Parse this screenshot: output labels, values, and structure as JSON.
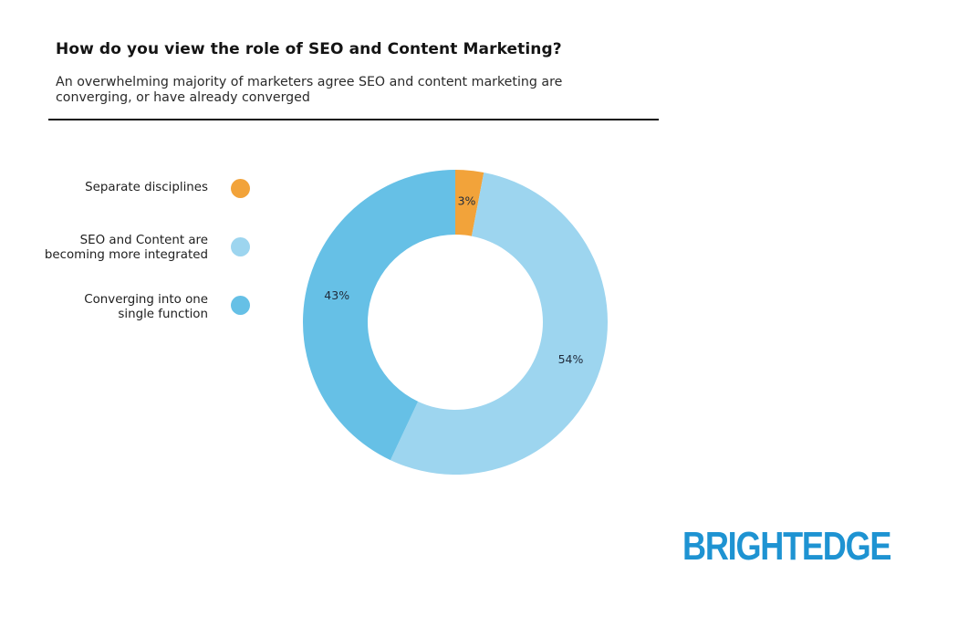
{
  "header": {
    "title": "How do you view the role of SEO and Content Marketing?",
    "subtitle": "An overwhelming majority of marketers agree SEO and content marketing are converging, or have already converged"
  },
  "legend": {
    "items": [
      {
        "label_line1": "Separate disciplines",
        "label_line2": "",
        "color": "#f2a33a"
      },
      {
        "label_line1": "SEO and Content are",
        "label_line2": "becoming more integrated",
        "color": "#9dd5ef"
      },
      {
        "label_line1": "Converging into one",
        "label_line2": "single function",
        "color": "#66c0e6"
      }
    ]
  },
  "chart_data": {
    "type": "pie",
    "variant": "donut",
    "title": "How do you view the role of SEO and Content Marketing?",
    "subtitle": "An overwhelming majority of marketers agree SEO and content marketing are converging, or have already converged",
    "legend_position": "left",
    "categories": [
      "Separate disciplines",
      "SEO and Content are becoming more integrated",
      "Converging into one single function"
    ],
    "values": [
      3,
      54,
      43
    ],
    "value_labels": [
      "3%",
      "54%",
      "43%"
    ],
    "colors": [
      "#f2a33a",
      "#9dd5ef",
      "#66c0e6"
    ],
    "start_angle_deg": 0,
    "direction": "clockwise"
  },
  "brand": {
    "name": "BRIGHTEDGE",
    "color": "#1e93d2"
  }
}
